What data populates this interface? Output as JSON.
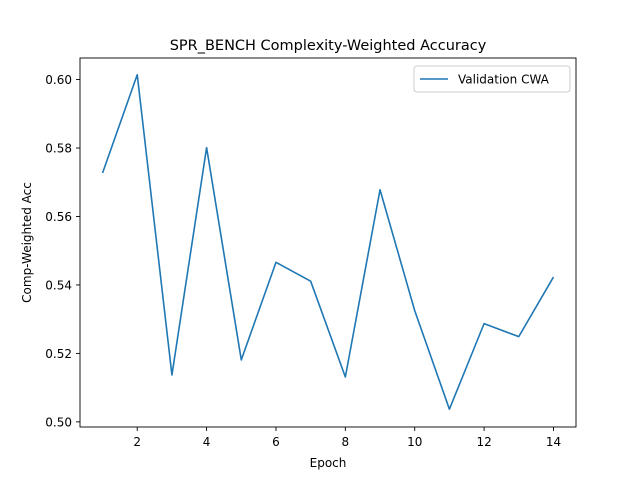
{
  "chart_data": {
    "type": "line",
    "title": "SPR_BENCH Complexity-Weighted Accuracy",
    "xlabel": "Epoch",
    "ylabel": "Comp-Weighted Acc",
    "xlim": [
      0.35,
      14.65
    ],
    "ylim": [
      0.4985,
      0.6063
    ],
    "x_ticks": [
      2,
      4,
      6,
      8,
      10,
      12,
      14
    ],
    "y_ticks": [
      0.5,
      0.52,
      0.54,
      0.56,
      0.58,
      0.6
    ],
    "x_tick_labels": [
      "2",
      "4",
      "6",
      "8",
      "10",
      "12",
      "14"
    ],
    "y_tick_labels": [
      "0.50",
      "0.52",
      "0.54",
      "0.56",
      "0.58",
      "0.60"
    ],
    "grid": false,
    "legend_position": "top-right",
    "series": [
      {
        "name": "Validation CWA",
        "color": "#1f77b4",
        "x": [
          1,
          2,
          3,
          4,
          5,
          6,
          7,
          8,
          9,
          10,
          11,
          12,
          13,
          14
        ],
        "y": [
          0.5727,
          0.6014,
          0.5137,
          0.5801,
          0.5181,
          0.5466,
          0.5411,
          0.5131,
          0.5678,
          0.5325,
          0.5037,
          0.5287,
          0.5249,
          0.5423
        ]
      }
    ]
  }
}
